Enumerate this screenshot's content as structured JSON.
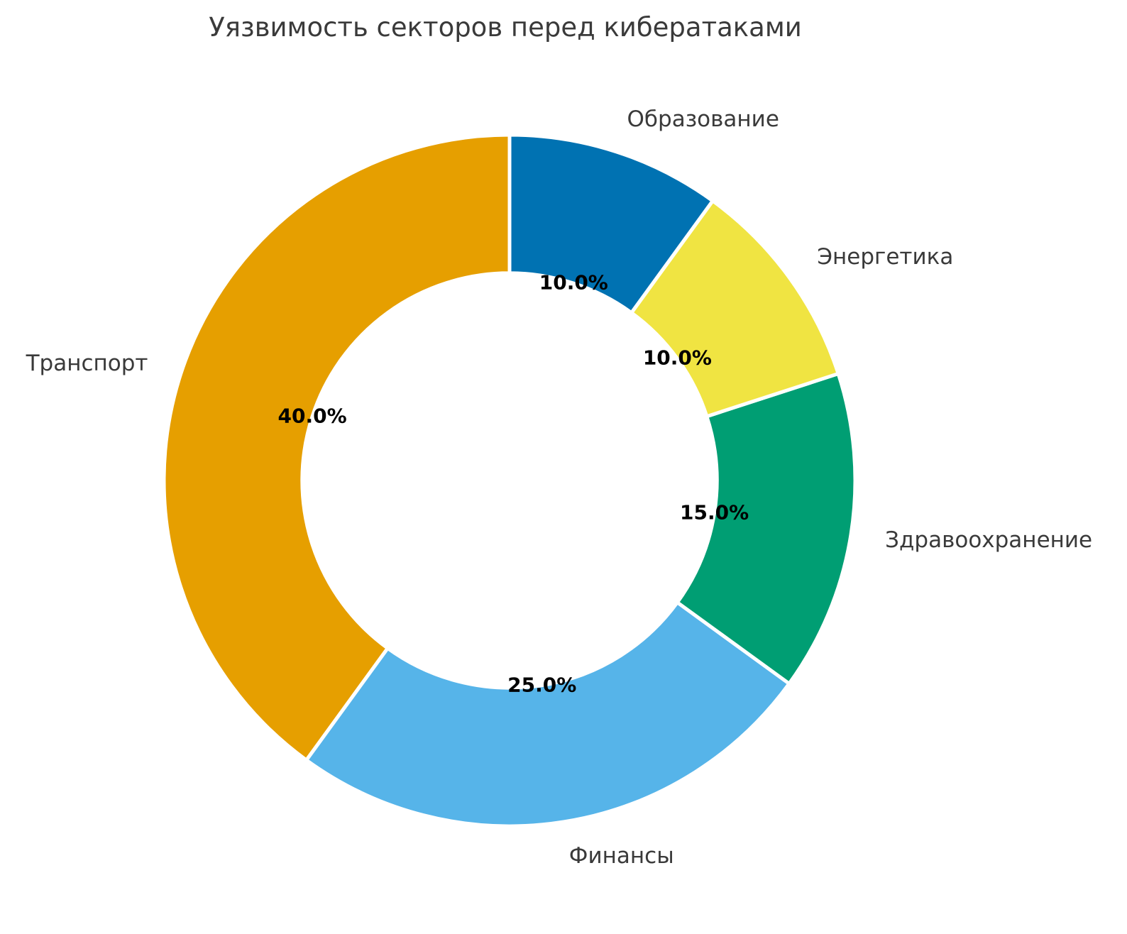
{
  "chart_data": {
    "type": "pie",
    "subtype": "donut",
    "title": "Уязвимость секторов перед кибератаками",
    "categories": [
      "Транспорт",
      "Финансы",
      "Здравоохранение",
      "Энергетика",
      "Образование"
    ],
    "values": [
      40.0,
      25.0,
      15.0,
      10.0,
      10.0
    ],
    "pct_labels": [
      "40.0%",
      "25.0%",
      "15.0%",
      "10.0%",
      "10.0%"
    ],
    "colors": [
      "#E69F00",
      "#56B4E9",
      "#009E73",
      "#F0E442",
      "#0072B2"
    ],
    "start_angle": 90,
    "direction": "counterclockwise",
    "donut_hole_ratio": 0.6,
    "label_distance": 1.1,
    "pct_distance": 0.6,
    "edge_color": "#ffffff",
    "edge_width": 5,
    "title_color": "#3a3a3a",
    "label_color": "#3a3a3a",
    "pct_color": "#000000",
    "background_color": "#ffffff",
    "legend": "none"
  }
}
